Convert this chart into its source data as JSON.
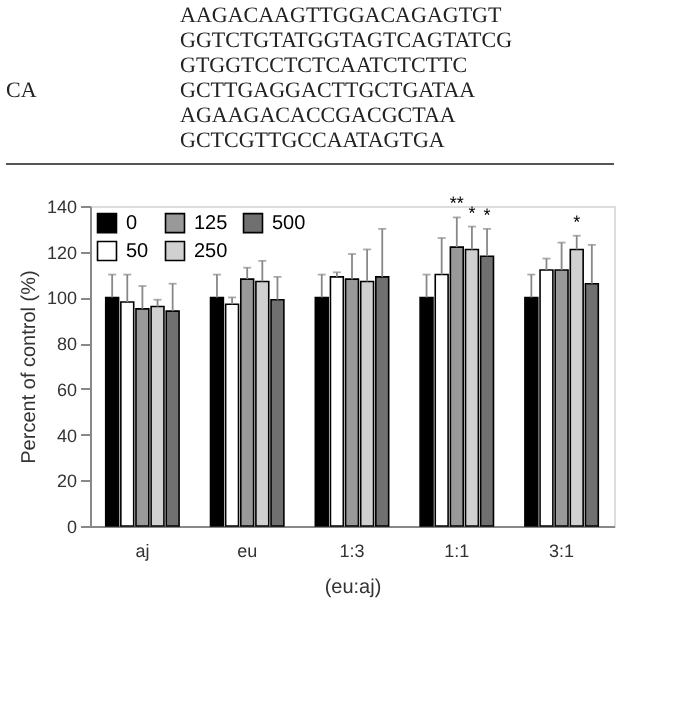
{
  "chart_data": {
    "type": "bar",
    "ylabel": "Percent of control (%)",
    "xlabel": "(eu:aj)",
    "categories": [
      "aj",
      "eu",
      "1:3",
      "1:1",
      "3:1"
    ],
    "series": [
      {
        "name": "0",
        "color": "#000000",
        "values": [
          100,
          100,
          100,
          100,
          100
        ],
        "errors": [
          10,
          10,
          10,
          10,
          10
        ]
      },
      {
        "name": "50",
        "color": "#ffffff",
        "values": [
          98,
          97,
          109,
          110,
          112
        ],
        "errors": [
          12,
          3,
          2,
          16,
          5
        ]
      },
      {
        "name": "125",
        "color": "#999999",
        "values": [
          95,
          108,
          108,
          122,
          112
        ],
        "errors": [
          10,
          5,
          11,
          13,
          12
        ],
        "value_labels": [
          null,
          null,
          null,
          "**",
          null
        ]
      },
      {
        "name": "250",
        "color": "#d0d0d0",
        "values": [
          96,
          107,
          107,
          121,
          121
        ],
        "errors": [
          3,
          9,
          14,
          10,
          6
        ],
        "value_labels": [
          null,
          null,
          null,
          "*",
          "*"
        ]
      },
      {
        "name": "500",
        "color": "#707070",
        "values": [
          94,
          99,
          109,
          118,
          106
        ],
        "errors": [
          12,
          10,
          21,
          12,
          17
        ],
        "value_labels": [
          null,
          null,
          null,
          "*",
          null
        ]
      }
    ],
    "ylim": [
      0,
      140
    ],
    "yticks": [
      0,
      20,
      40,
      60,
      80,
      100,
      120,
      140
    ],
    "grid": false,
    "legend": "top left",
    "annotations": [
      "CA",
      "AAGACAAGTTGGACAGAGTGT",
      "GGTCTGTATGGTAGTCAGTATCG",
      "GTGGTCCTCTCAATCTCTTC",
      "GCTTGAGGACTTGCTGATAA",
      "AGAAGACACCGACGCTAA",
      "GCTCGTTGCCAATAGTGA"
    ]
  }
}
